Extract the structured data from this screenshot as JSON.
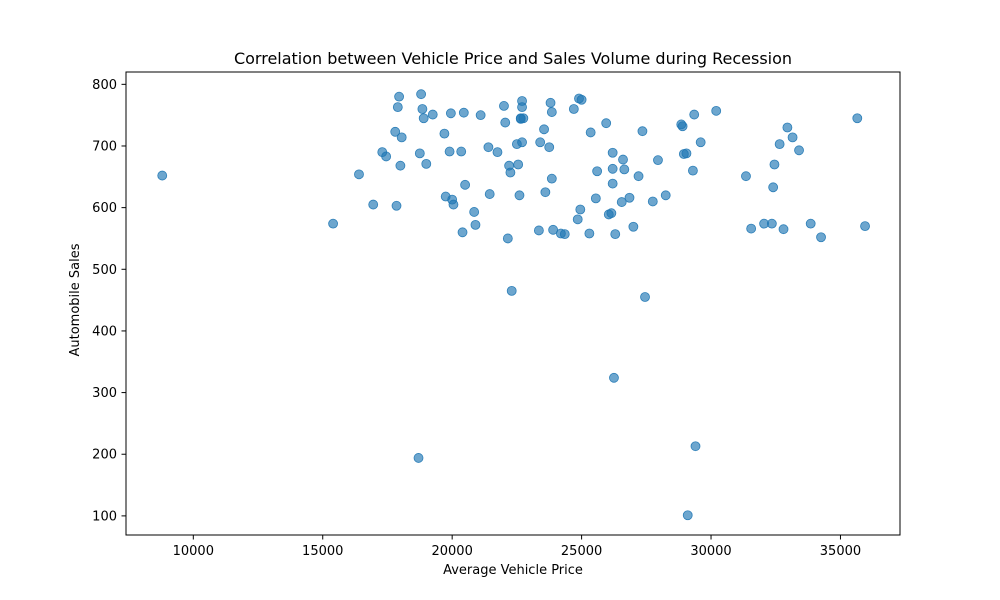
{
  "chart_data": {
    "type": "scatter",
    "title": "Correlation between Vehicle Price and Sales Volume during Recession",
    "xlabel": "Average Vehicle Price",
    "ylabel": "Automobile Sales",
    "xlim": [
      7400,
      37300
    ],
    "ylim": [
      69,
      820
    ],
    "xticks": [
      10000,
      15000,
      20000,
      25000,
      30000,
      35000
    ],
    "yticks": [
      100,
      200,
      300,
      400,
      500,
      600,
      700,
      800
    ],
    "grid": false,
    "legend": "none",
    "marker_color": "#1f77b4",
    "marker_opacity": 0.65,
    "series": [
      {
        "x": [
          8800,
          15400,
          16400,
          16950,
          17300,
          17450,
          17800,
          17850,
          17900,
          17950,
          18000,
          18050,
          18700,
          18750,
          18800,
          18850,
          18900,
          19000,
          19250,
          19700,
          19750,
          19900,
          19950,
          20000,
          20050,
          20350,
          20400,
          20450,
          20500,
          20850,
          20900,
          21100,
          21400,
          21450,
          21750,
          22000,
          22050,
          22150,
          22200,
          22250,
          22300,
          22500,
          22550,
          22600,
          22650,
          22650,
          22700,
          22700,
          22700,
          22750,
          23350,
          23400,
          23550,
          23600,
          23750,
          23800,
          23850,
          23850,
          23900,
          24200,
          24350,
          24700,
          24850,
          24900,
          24950,
          25000,
          25300,
          25350,
          25550,
          25600,
          25950,
          26050,
          26150,
          26200,
          26200,
          26200,
          26250,
          26300,
          26550,
          26600,
          26650,
          26850,
          27000,
          27200,
          27350,
          27450,
          27750,
          27950,
          28250,
          28850,
          28900,
          28950,
          29050,
          29100,
          29300,
          29350,
          29400,
          29600,
          30200,
          31350,
          31550,
          32050,
          32350,
          32400,
          32450,
          32650,
          32800,
          32950,
          33150,
          33400,
          33850,
          34250,
          35650,
          35950
        ],
        "y": [
          652,
          574,
          654,
          605,
          690,
          683,
          723,
          603,
          763,
          780,
          668,
          714,
          194,
          688,
          784,
          760,
          745,
          671,
          751,
          720,
          618,
          691,
          753,
          613,
          605,
          691,
          560,
          754,
          637,
          593,
          572,
          750,
          698,
          622,
          690,
          765,
          738,
          550,
          668,
          657,
          465,
          703,
          670,
          620,
          744,
          745,
          773,
          763,
          706,
          745,
          563,
          706,
          727,
          625,
          698,
          770,
          755,
          647,
          564,
          558,
          557,
          760,
          581,
          777,
          597,
          775,
          558,
          722,
          615,
          659,
          737,
          589,
          591,
          689,
          663,
          639,
          324,
          557,
          609,
          678,
          662,
          616,
          569,
          651,
          724,
          455,
          610,
          677,
          620,
          735,
          732,
          687,
          688,
          101,
          660,
          751,
          213,
          706,
          757,
          651,
          566,
          574,
          574,
          633,
          670,
          703,
          565,
          730,
          714,
          693,
          574,
          552,
          745,
          570
        ]
      }
    ]
  }
}
